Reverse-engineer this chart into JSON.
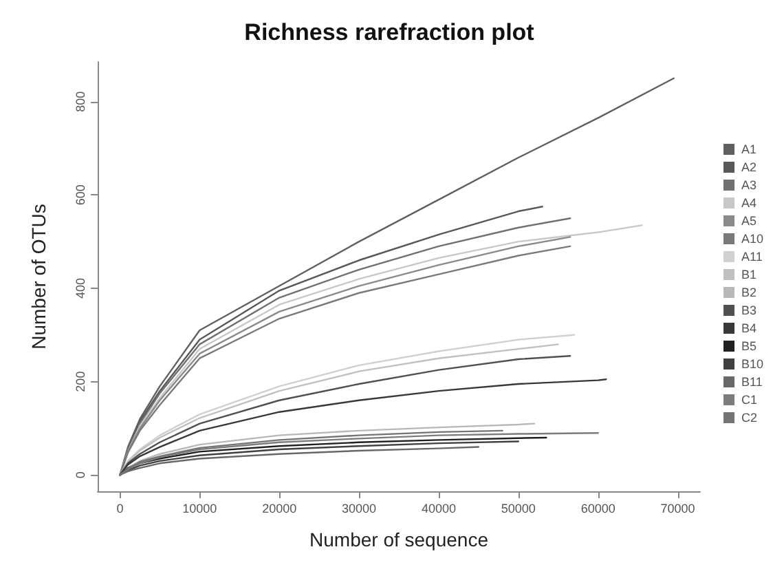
{
  "chart_data": {
    "type": "line",
    "title": "Richness rarefraction plot",
    "xlabel": "Number of sequence",
    "ylabel": "Number of OTUs",
    "xlim": [
      -2800,
      72800
    ],
    "ylim": [
      -35,
      885
    ],
    "xticks": [
      0,
      10000,
      20000,
      30000,
      40000,
      50000,
      60000,
      70000
    ],
    "yticks": [
      0,
      200,
      400,
      600,
      800
    ],
    "grid": false,
    "legend": "right",
    "marker": "none",
    "line_style": "solid",
    "series": [
      {
        "name": "A1",
        "color": "#606060",
        "x": [
          0,
          1000,
          2500,
          5000,
          10000,
          20000,
          30000,
          40000,
          50000,
          60000,
          69500
        ],
        "values": [
          0,
          60,
          120,
          190,
          310,
          405,
          500,
          590,
          680,
          765,
          850
        ]
      },
      {
        "name": "A2",
        "color": "#585858",
        "x": [
          0,
          1000,
          2500,
          5000,
          10000,
          20000,
          30000,
          40000,
          50000,
          53000
        ],
        "values": [
          0,
          55,
          115,
          180,
          290,
          395,
          460,
          515,
          565,
          575
        ]
      },
      {
        "name": "A3",
        "color": "#707070",
        "x": [
          0,
          1000,
          2500,
          5000,
          10000,
          20000,
          30000,
          40000,
          50000,
          56500
        ],
        "values": [
          0,
          55,
          110,
          175,
          280,
          380,
          440,
          490,
          530,
          550
        ]
      },
      {
        "name": "A4",
        "color": "#c8c8c8",
        "x": [
          0,
          1000,
          2500,
          5000,
          10000,
          20000,
          30000,
          40000,
          50000,
          60000,
          65500
        ],
        "values": [
          0,
          50,
          105,
          165,
          270,
          365,
          420,
          465,
          500,
          520,
          535
        ]
      },
      {
        "name": "A5",
        "color": "#8a8a8a",
        "x": [
          0,
          1000,
          2500,
          5000,
          10000,
          20000,
          30000,
          40000,
          50000,
          56500
        ],
        "values": [
          0,
          50,
          100,
          160,
          260,
          350,
          405,
          450,
          490,
          510
        ]
      },
      {
        "name": "A10",
        "color": "#7a7a7a",
        "x": [
          0,
          1000,
          2500,
          5000,
          10000,
          20000,
          30000,
          40000,
          50000,
          56500
        ],
        "values": [
          0,
          48,
          95,
          150,
          250,
          335,
          390,
          430,
          470,
          490
        ]
      },
      {
        "name": "A11",
        "color": "#d0d0d0",
        "x": [
          0,
          1000,
          2500,
          5000,
          10000,
          20000,
          30000,
          40000,
          50000,
          57000
        ],
        "values": [
          0,
          30,
          55,
          85,
          130,
          190,
          235,
          265,
          290,
          300
        ]
      },
      {
        "name": "B1",
        "color": "#c0c0c0",
        "x": [
          0,
          1000,
          2500,
          5000,
          10000,
          20000,
          30000,
          40000,
          50000,
          55000
        ],
        "values": [
          0,
          28,
          52,
          80,
          122,
          180,
          222,
          250,
          270,
          280
        ]
      },
      {
        "name": "B2",
        "color": "#b8b8b8",
        "x": [
          0,
          1000,
          2500,
          5000,
          10000,
          20000,
          30000,
          40000,
          50000,
          52000
        ],
        "values": [
          0,
          15,
          30,
          45,
          65,
          85,
          95,
          102,
          108,
          110
        ]
      },
      {
        "name": "B3",
        "color": "#505050",
        "x": [
          0,
          1000,
          2500,
          5000,
          10000,
          20000,
          30000,
          40000,
          50000,
          56500
        ],
        "values": [
          0,
          25,
          45,
          70,
          110,
          160,
          195,
          225,
          248,
          255
        ]
      },
      {
        "name": "B4",
        "color": "#383838",
        "x": [
          0,
          1000,
          2500,
          5000,
          10000,
          20000,
          30000,
          40000,
          50000,
          60000,
          61000
        ],
        "values": [
          0,
          22,
          40,
          60,
          95,
          135,
          160,
          180,
          195,
          203,
          205
        ]
      },
      {
        "name": "B5",
        "color": "#202020",
        "x": [
          0,
          1000,
          2500,
          5000,
          10000,
          20000,
          30000,
          40000,
          50000,
          53500
        ],
        "values": [
          0,
          15,
          25,
          35,
          50,
          62,
          70,
          75,
          79,
          80
        ]
      },
      {
        "name": "B10",
        "color": "#404040",
        "x": [
          0,
          1000,
          2500,
          5000,
          10000,
          20000,
          30000,
          40000,
          50000
        ],
        "values": [
          0,
          10,
          20,
          30,
          42,
          55,
          62,
          68,
          72
        ]
      },
      {
        "name": "B11",
        "color": "#686868",
        "x": [
          0,
          1000,
          2500,
          5000,
          10000,
          20000,
          30000,
          40000,
          45000
        ],
        "values": [
          0,
          8,
          15,
          25,
          35,
          45,
          52,
          57,
          60
        ]
      },
      {
        "name": "C1",
        "color": "#7c7c7c",
        "x": [
          0,
          1000,
          2500,
          5000,
          10000,
          20000,
          30000,
          40000,
          50000,
          60000
        ],
        "values": [
          0,
          12,
          25,
          38,
          55,
          70,
          78,
          85,
          88,
          90
        ]
      },
      {
        "name": "C2",
        "color": "#747474",
        "x": [
          0,
          1000,
          2500,
          5000,
          10000,
          20000,
          30000,
          40000,
          48000
        ],
        "values": [
          0,
          14,
          28,
          40,
          58,
          75,
          85,
          92,
          95
        ]
      }
    ]
  }
}
